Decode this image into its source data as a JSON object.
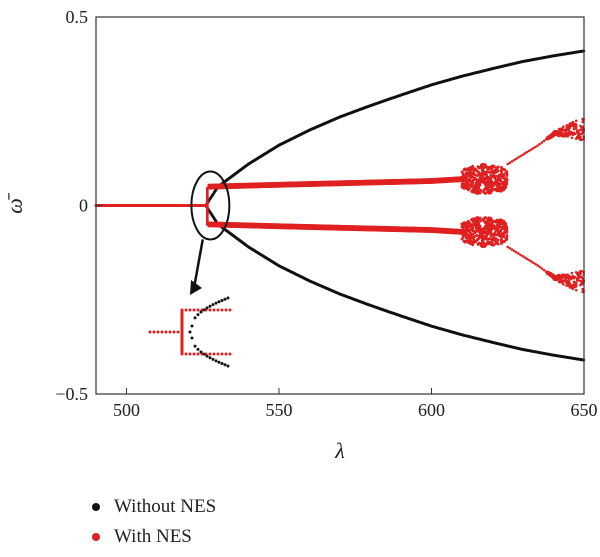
{
  "chart_data": {
    "type": "scatter",
    "title": "",
    "xlabel": "λ",
    "ylabel": "ω̄",
    "xlim": [
      490,
      650
    ],
    "ylim": [
      -0.5,
      0.5
    ],
    "x_ticks": [
      "500",
      "550",
      "600",
      "650"
    ],
    "y_ticks": [
      "0.5",
      "0",
      "−0.5"
    ],
    "grid": false,
    "legend_position": "bottom-left",
    "series": [
      {
        "name": "Without NES",
        "color": "#111111",
        "shape": "pitchfork bifurcation: ω̄ = 0 for λ < 526, two branches ±ω̄ for λ ≥ 526",
        "x": [
          526,
          530,
          540,
          550,
          560,
          570,
          580,
          590,
          600,
          610,
          620,
          630,
          640,
          650
        ],
        "y_upper": [
          0.0,
          0.05,
          0.11,
          0.16,
          0.2,
          0.235,
          0.265,
          0.293,
          0.32,
          0.343,
          0.363,
          0.382,
          0.397,
          0.41
        ],
        "y_lower": [
          0.0,
          -0.05,
          -0.11,
          -0.16,
          -0.2,
          -0.235,
          -0.265,
          -0.293,
          -0.32,
          -0.343,
          -0.363,
          -0.382,
          -0.397,
          -0.41
        ]
      },
      {
        "name": "With NES",
        "color": "#e02020",
        "x": [
          490,
          526,
          527,
          550,
          575,
          600,
          610,
          615,
          620,
          625,
          635,
          640,
          645,
          650
        ],
        "y_upper": [
          0.0,
          0.0,
          0.05,
          0.055,
          0.06,
          0.065,
          0.07,
          0.07,
          0.07,
          0.11,
          0.16,
          0.19,
          0.2,
          0.2
        ],
        "y_lower": [
          0.0,
          0.0,
          -0.05,
          -0.055,
          -0.06,
          -0.065,
          -0.07,
          -0.07,
          -0.07,
          -0.11,
          -0.16,
          -0.19,
          -0.2,
          -0.2
        ]
      }
    ],
    "annotations": [
      {
        "type": "ellipse",
        "center": [
          527,
          0.0
        ],
        "note": "zoom region near bifurcation"
      },
      {
        "type": "arrow",
        "note": "points to inset showing zoomed bifurcation"
      }
    ]
  },
  "legend": {
    "items": [
      {
        "label": "Without NES",
        "color": "#111111"
      },
      {
        "label": "With NES",
        "color": "#e02020"
      }
    ]
  }
}
